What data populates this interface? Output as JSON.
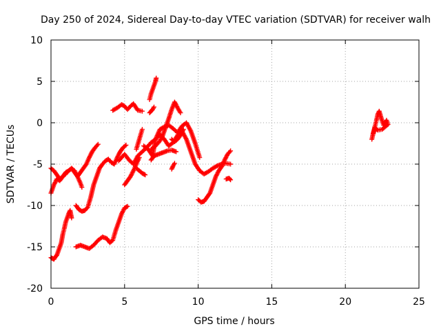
{
  "chart_data": {
    "type": "scatter",
    "title": "Day 250 of 2024, Sidereal Day-to-day VTEC variation (SDTVAR) for receiver walh",
    "xlabel": "GPS time / hours",
    "ylabel": "SDTVAR / TECUs",
    "xlim": [
      0,
      25
    ],
    "ylim": [
      -20,
      10
    ],
    "xticks": [
      "0",
      "5",
      "10",
      "15",
      "20",
      "25"
    ],
    "yticks": [
      "10",
      "5",
      "0",
      "-5",
      "-10",
      "-15",
      "-20"
    ],
    "grid": true,
    "marker": "plus",
    "color": "#ff0000",
    "series": [
      {
        "x": [
          0.0,
          0.2,
          0.4,
          0.6,
          0.8,
          1.0,
          1.2,
          1.4,
          1.6,
          1.8,
          2.0,
          2.2,
          2.4,
          2.6,
          2.8,
          3.0,
          3.2
        ],
        "y": [
          -8.5,
          -7.5,
          -6.8,
          -7.0,
          -6.5,
          -6.0,
          -5.8,
          -5.5,
          -6.0,
          -6.5,
          -6.0,
          -5.5,
          -5.0,
          -4.2,
          -3.5,
          -3.0,
          -2.6
        ]
      },
      {
        "x": [
          0.0,
          0.2,
          0.4,
          0.6,
          0.8,
          1.0,
          1.2,
          1.4,
          1.6,
          1.8,
          2.0,
          2.1
        ],
        "y": [
          -5.5,
          -5.8,
          -6.3,
          -6.8,
          -6.5,
          -6.2,
          -5.8,
          -5.5,
          -5.8,
          -6.5,
          -7.3,
          -7.8
        ]
      },
      {
        "x": [
          0.0,
          0.1,
          0.2,
          0.3,
          0.4,
          0.5,
          0.6,
          0.7,
          0.8,
          0.9,
          1.0,
          1.1,
          1.2,
          1.3,
          1.4
        ],
        "y": [
          -16.3,
          -16.4,
          -16.5,
          -16.2,
          -16.0,
          -15.5,
          -15.0,
          -14.5,
          -13.5,
          -12.8,
          -12.0,
          -11.5,
          -11.0,
          -10.6,
          -11.5
        ]
      },
      {
        "x": [
          1.7,
          1.9,
          2.1,
          2.3,
          2.5,
          2.7,
          2.9,
          3.1,
          3.3,
          3.5,
          3.7,
          3.9,
          4.1,
          4.3,
          4.5,
          4.7,
          4.9,
          5.1
        ],
        "y": [
          -10.0,
          -10.5,
          -10.7,
          -10.6,
          -10.2,
          -9.0,
          -7.5,
          -6.5,
          -5.5,
          -5.0,
          -4.6,
          -4.4,
          -4.8,
          -5.0,
          -4.2,
          -3.5,
          -3.0,
          -2.7
        ]
      },
      {
        "x": [
          1.7,
          2.0,
          2.3,
          2.6,
          2.9,
          3.2,
          3.5,
          3.8,
          4.0,
          4.2,
          4.4,
          4.6,
          4.8,
          5.0,
          5.2
        ],
        "y": [
          -15.0,
          -14.8,
          -15.0,
          -15.2,
          -14.8,
          -14.2,
          -13.8,
          -14.0,
          -14.5,
          -14.2,
          -13.0,
          -12.0,
          -11.0,
          -10.3,
          -10.1
        ]
      },
      {
        "x": [
          4.2,
          4.5,
          4.8,
          5.0,
          5.2,
          5.4,
          5.6,
          5.9,
          6.2
        ],
        "y": [
          1.5,
          1.8,
          2.2,
          2.0,
          1.6,
          2.0,
          2.3,
          1.5,
          1.4
        ]
      },
      {
        "x": [
          4.6,
          4.8,
          5.0,
          5.3,
          5.6,
          5.9,
          6.2,
          6.5,
          6.8,
          7.1,
          7.4,
          7.7,
          8.0,
          8.3,
          8.6,
          8.9,
          9.2,
          9.5,
          9.8,
          10.1,
          10.4,
          10.7,
          11.0,
          11.3,
          11.6,
          11.9,
          12.2
        ],
        "y": [
          -4.6,
          -4.2,
          -3.8,
          -4.5,
          -5.0,
          -4.0,
          -3.5,
          -3.0,
          -2.4,
          -2.0,
          -1.4,
          -2.0,
          -2.8,
          -2.4,
          -1.5,
          -1.0,
          -2.0,
          -3.5,
          -5.0,
          -5.8,
          -6.2,
          -5.9,
          -5.5,
          -5.2,
          -5.0,
          -4.9,
          -5.0
        ]
      },
      {
        "x": [
          5.0,
          5.2,
          5.4,
          5.6,
          5.8,
          6.0
        ],
        "y": [
          -7.5,
          -7.0,
          -6.5,
          -5.8,
          -5.0,
          -4.2
        ]
      },
      {
        "x": [
          5.8,
          6.0,
          6.2,
          6.4
        ],
        "y": [
          -5.5,
          -5.8,
          -6.1,
          -6.3
        ]
      },
      {
        "x": [
          5.8,
          6.0,
          6.2
        ],
        "y": [
          -3.2,
          -2.0,
          -0.8
        ]
      },
      {
        "x": [
          6.3,
          6.6,
          6.9,
          7.1,
          7.4,
          7.7,
          8.0,
          8.3,
          8.6,
          8.9,
          9.2,
          9.5,
          9.8,
          10.1
        ],
        "y": [
          -2.8,
          -3.2,
          -4.0,
          -2.0,
          -0.8,
          -0.5,
          -0.3,
          -0.7,
          -1.2,
          -0.4,
          0.0,
          -1.0,
          -2.5,
          -4.2
        ]
      },
      {
        "x": [
          6.8,
          7.0,
          7.2,
          7.4,
          7.6,
          7.8,
          8.0,
          8.2,
          8.4,
          8.6,
          8.8
        ],
        "y": [
          -3.2,
          -3.0,
          -2.6,
          -2.2,
          -1.5,
          -0.5,
          0.5,
          1.6,
          2.5,
          1.8,
          1.2
        ]
      },
      {
        "x": [
          6.8,
          7.0,
          7.3,
          7.6,
          7.9,
          8.2,
          8.5
        ],
        "y": [
          -4.5,
          -4.0,
          -3.8,
          -3.6,
          -3.4,
          -3.3,
          -3.5
        ]
      },
      {
        "x": [
          6.7,
          6.8,
          6.9,
          7.0,
          7.1,
          7.15
        ],
        "y": [
          2.8,
          3.5,
          4.0,
          4.5,
          5.0,
          5.4
        ]
      },
      {
        "x": [
          6.7,
          6.8,
          6.9,
          7.0
        ],
        "y": [
          1.2,
          1.4,
          1.6,
          1.9
        ]
      },
      {
        "x": [
          8.2,
          8.3,
          8.4
        ],
        "y": [
          -5.6,
          -5.2,
          -4.9
        ]
      },
      {
        "x": [
          8.2,
          8.4,
          8.6,
          8.8,
          9.0
        ],
        "y": [
          -2.0,
          -2.3,
          -2.0,
          -1.5,
          -0.8
        ]
      },
      {
        "x": [
          10.0,
          10.2,
          10.4,
          10.6,
          10.8,
          11.0,
          11.2,
          11.4,
          11.6,
          11.8,
          12.0,
          12.2
        ],
        "y": [
          -9.3,
          -9.6,
          -9.5,
          -9.0,
          -8.5,
          -7.5,
          -6.5,
          -5.8,
          -5.3,
          -4.5,
          -3.8,
          -3.4
        ]
      },
      {
        "x": [
          11.9,
          12.1,
          12.2
        ],
        "y": [
          -6.8,
          -6.7,
          -6.9
        ]
      },
      {
        "x": [
          21.8,
          21.9,
          22.0,
          22.1,
          22.2,
          22.3,
          22.4,
          22.5,
          22.6,
          22.7,
          22.8,
          22.9,
          22.5,
          22.2,
          22.0,
          21.9
        ],
        "y": [
          -2.0,
          -1.2,
          -0.5,
          0.2,
          1.0,
          1.4,
          0.8,
          0.2,
          -0.3,
          0.0,
          0.3,
          -0.2,
          -0.8,
          -0.9,
          -0.6,
          -1.3
        ]
      }
    ]
  }
}
